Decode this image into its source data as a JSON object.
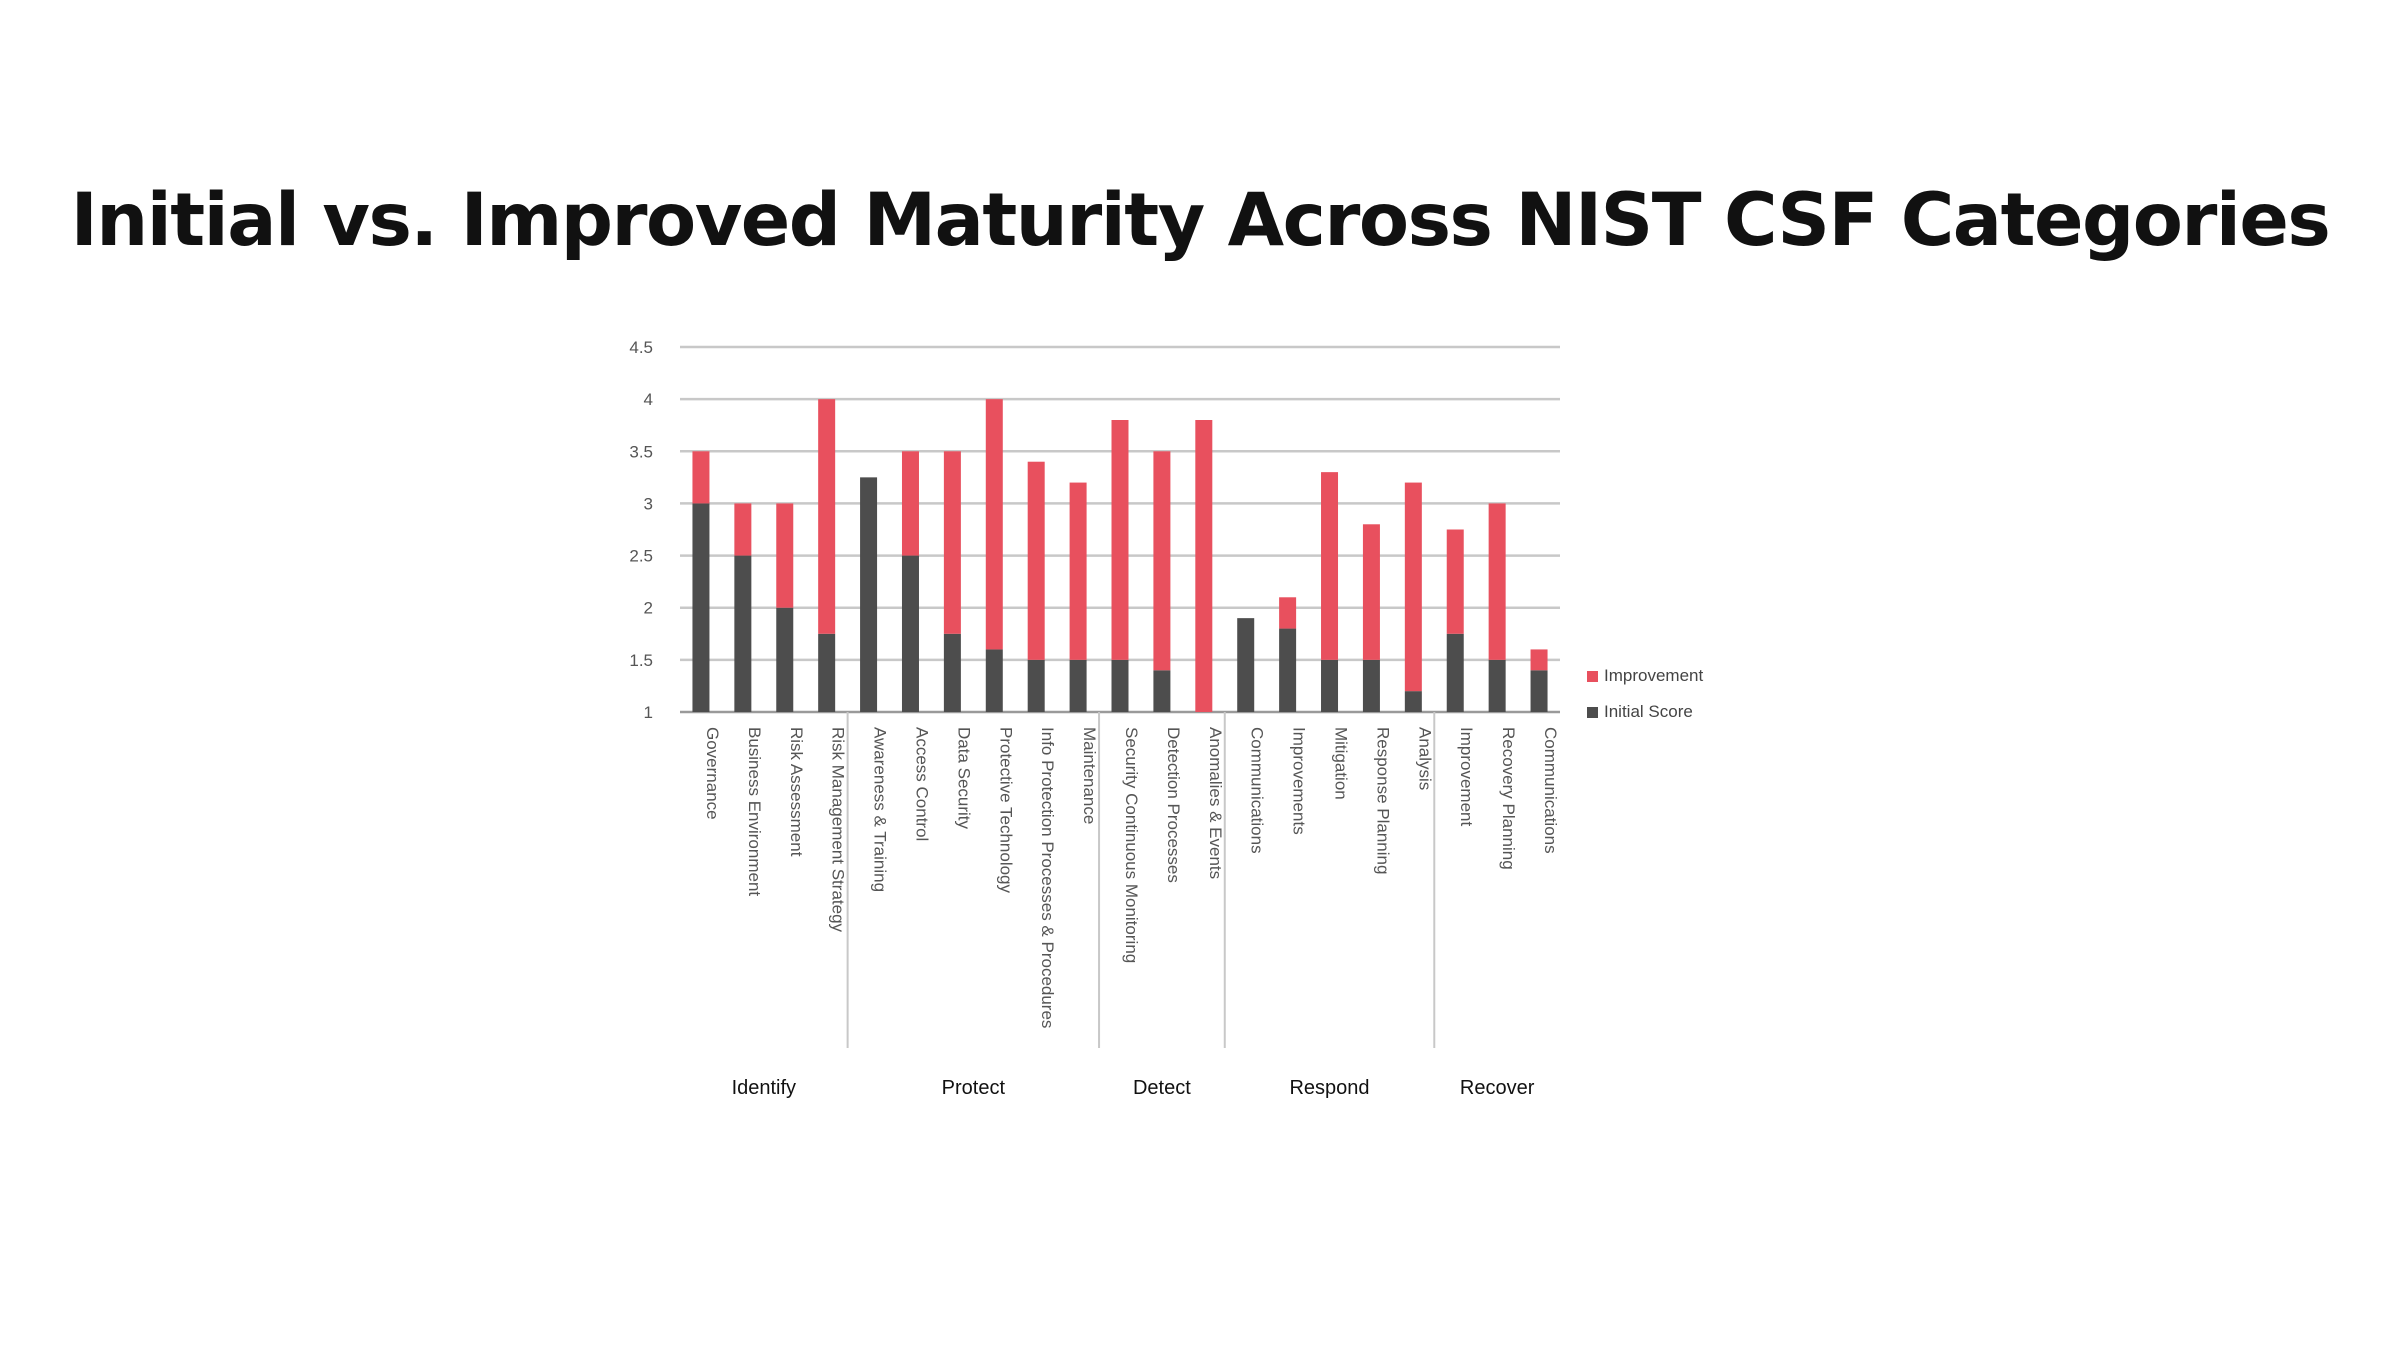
{
  "slide": {
    "title": "Initial vs. Improved Maturity Across NIST CSF Categories"
  },
  "chart_data": {
    "type": "bar",
    "stacked": true,
    "title": "",
    "xlabel": "",
    "ylabel": "",
    "ylim": [
      1,
      4.5
    ],
    "yticks": [
      "1",
      "1.5",
      "2",
      "2.5",
      "3",
      "3.5",
      "4",
      "4.5"
    ],
    "grid": true,
    "legend_position": "right",
    "categories": [
      "Governance",
      "Business Environment",
      "Risk Assessment",
      "Risk Management Strategy",
      "Awareness & Training",
      "Access Control",
      "Data Security",
      "Protective Technology",
      "Info Protection Processes & Procedures",
      "Maintenance",
      "Security Continuous Monitoring",
      "Detection Processes",
      "Anomalies & Events",
      "Communications",
      "Improvements",
      "Mitigation",
      "Response Planning",
      "Analysis",
      "Improvement",
      "Recovery Planning",
      "Communications"
    ],
    "groups": [
      {
        "label": "Identify",
        "count": 4
      },
      {
        "label": "Protect",
        "count": 6
      },
      {
        "label": "Detect",
        "count": 3
      },
      {
        "label": "Respond",
        "count": 5
      },
      {
        "label": "Recover",
        "count": 3
      }
    ],
    "series": [
      {
        "name": "Initial Score",
        "color": "#4d4d4d",
        "values": [
          3.0,
          2.5,
          2.0,
          1.75,
          3.25,
          2.5,
          1.75,
          1.6,
          1.5,
          1.5,
          1.5,
          1.4,
          1.0,
          1.9,
          1.8,
          1.5,
          1.5,
          1.2,
          1.75,
          1.5,
          1.4
        ]
      },
      {
        "name": "Improvement",
        "color": "#e8505e",
        "totals": [
          3.5,
          3.0,
          3.0,
          4.0,
          3.25,
          3.5,
          3.5,
          4.0,
          3.4,
          3.2,
          3.8,
          3.5,
          3.8,
          1.9,
          2.1,
          3.3,
          2.8,
          3.2,
          2.75,
          3.0,
          1.6
        ]
      }
    ],
    "legend": [
      "Improvement",
      "Initial Score"
    ]
  }
}
